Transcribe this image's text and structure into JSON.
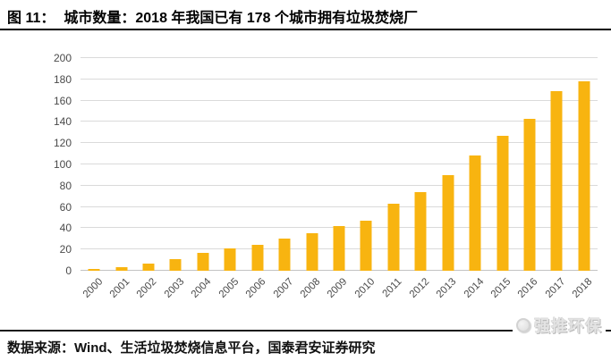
{
  "figure": {
    "label": "图 11：",
    "title": "城市数量：2018 年我国已有 178 个城市拥有垃圾焚烧厂"
  },
  "chart_data": {
    "type": "bar",
    "title": "图 11：城市数量：2018 年我国已有 178 个城市拥有垃圾焚烧厂",
    "categories": [
      "2000",
      "2001",
      "2002",
      "2003",
      "2004",
      "2005",
      "2006",
      "2007",
      "2008",
      "2009",
      "2010",
      "2011",
      "2012",
      "2013",
      "2014",
      "2015",
      "2016",
      "2017",
      "2018"
    ],
    "values": [
      2,
      3,
      7,
      11,
      17,
      21,
      24,
      30,
      35,
      42,
      47,
      63,
      74,
      90,
      108,
      127,
      143,
      169,
      178
    ],
    "xlabel": "",
    "ylabel": "",
    "ylim": [
      0,
      200
    ],
    "ytick_step": 20,
    "grid": true,
    "legend": false,
    "bar_color": "#f8b410",
    "gridline_color": "#dadada",
    "tick_label_color": "#4a4a4a"
  },
  "footer": {
    "source_text": "数据来源：Wind、生活垃圾焚烧信息平台，国泰君安证券研究"
  },
  "watermark": {
    "icon": "circle-logo-icon",
    "text": "强推环保"
  }
}
